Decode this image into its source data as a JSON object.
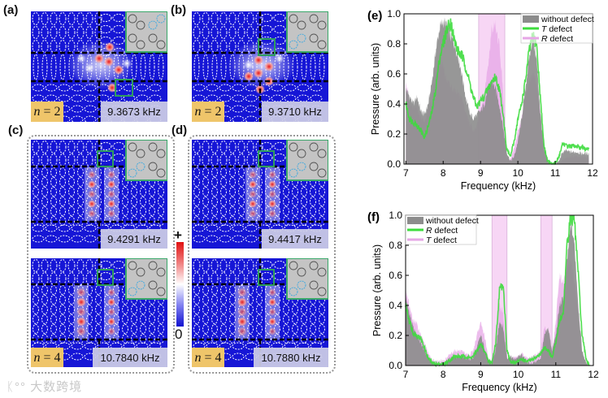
{
  "figure": {
    "panel_labels": {
      "a": "(a)",
      "b": "(b)",
      "c": "(c)",
      "d": "(d)",
      "e": "(e)",
      "f": "(f)"
    },
    "subpanels": [
      {
        "id": "a",
        "n_var": "n",
        "n_value": " = 2",
        "freq": "9.3673 kHz",
        "highlight": "top-right"
      },
      {
        "id": "b",
        "n_var": "n",
        "n_value": " = 2",
        "freq": "9.3710 kHz",
        "highlight": "bottom-left"
      },
      {
        "id": "c-top",
        "freq": "9.4291 kHz",
        "highlight": "bottom-left"
      },
      {
        "id": "c-bottom",
        "n_var": "n",
        "n_value": " = 4",
        "freq": "10.7840 kHz",
        "highlight": "bottom-left"
      },
      {
        "id": "d-top",
        "freq": "9.4417 kHz",
        "highlight": "bottom-left"
      },
      {
        "id": "d-bottom",
        "n_var": "n",
        "n_value": " = 4",
        "freq": "10.7880 kHz",
        "highlight": "bottom-left"
      }
    ],
    "colorbar": {
      "max_label": "+",
      "min_label": "0"
    },
    "watermark": "大数跨境"
  },
  "chart_data": [
    {
      "id": "e",
      "type": "area",
      "title": "(e)",
      "xlabel": "Frequency (kHz)",
      "ylabel": "Pressure (arb. units)",
      "xlim": [
        6.95,
        12.0
      ],
      "ylim": [
        0,
        1.0
      ],
      "xticks": [
        7,
        8,
        9,
        10,
        11,
        12
      ],
      "yticks": [
        "0.0",
        "0.2",
        "0.4",
        "0.6",
        "0.8",
        "1.0"
      ],
      "legend_position": "top-right",
      "bands": [
        [
          8.95,
          9.65
        ]
      ],
      "x": [
        7.0,
        7.1,
        7.2,
        7.3,
        7.4,
        7.5,
        7.6,
        7.7,
        7.8,
        7.9,
        8.0,
        8.1,
        8.2,
        8.3,
        8.4,
        8.5,
        8.6,
        8.7,
        8.8,
        8.9,
        9.0,
        9.1,
        9.2,
        9.3,
        9.4,
        9.5,
        9.6,
        9.7,
        9.8,
        9.9,
        10.0,
        10.1,
        10.2,
        10.3,
        10.4,
        10.5,
        10.6,
        10.7,
        10.8,
        10.9,
        11.0,
        11.1,
        11.2,
        11.3,
        11.4,
        11.5,
        11.6,
        11.7,
        11.8,
        11.9
      ],
      "series": [
        {
          "name": "without defect",
          "italic": "",
          "rest": "without defect",
          "style": "fill",
          "color": "#8c8c8c",
          "values": [
            0.5,
            0.45,
            0.4,
            0.45,
            0.35,
            0.33,
            0.4,
            0.55,
            0.75,
            0.9,
            0.95,
            0.92,
            0.85,
            0.8,
            0.72,
            0.6,
            0.45,
            0.35,
            0.3,
            0.33,
            0.35,
            0.4,
            0.5,
            0.55,
            0.5,
            0.4,
            0.25,
            0.08,
            0.02,
            0.05,
            0.15,
            0.3,
            0.5,
            0.7,
            0.85,
            0.7,
            0.35,
            0.1,
            0.02,
            0.0,
            0.0,
            0.02,
            0.08,
            0.09,
            0.08,
            0.08,
            0.08,
            0.07,
            0.07,
            0.07
          ]
        },
        {
          "name": "T defect",
          "italic": "T",
          "rest": " defect",
          "style": "line",
          "color": "#3ddc3d",
          "values": [
            0.4,
            0.3,
            0.28,
            0.26,
            0.22,
            0.18,
            0.25,
            0.35,
            0.5,
            0.7,
            0.8,
            0.9,
            0.95,
            0.82,
            0.75,
            0.72,
            0.65,
            0.55,
            0.45,
            0.38,
            0.42,
            0.45,
            0.5,
            0.55,
            0.58,
            0.5,
            0.35,
            0.1,
            0.05,
            0.15,
            0.3,
            0.4,
            0.55,
            0.75,
            0.85,
            0.8,
            0.45,
            0.12,
            0.02,
            0.0,
            0.0,
            0.05,
            0.14,
            0.12,
            0.12,
            0.12,
            0.11,
            0.11,
            0.1,
            0.11
          ]
        },
        {
          "name": "R defect",
          "italic": "R",
          "rest": " defect",
          "style": "pinkline",
          "color": "#e6a6e6",
          "values": [
            0.55,
            0.4,
            0.38,
            0.38,
            0.3,
            0.28,
            0.35,
            0.45,
            0.6,
            0.7,
            0.65,
            0.55,
            0.52,
            0.5,
            0.48,
            0.42,
            0.35,
            0.28,
            0.22,
            0.25,
            0.35,
            0.45,
            0.65,
            0.9,
            0.92,
            0.8,
            0.5,
            0.05,
            0.03,
            0.1,
            0.22,
            0.3,
            0.45,
            0.55,
            0.6,
            0.55,
            0.3,
            0.08,
            0.01,
            0.0,
            0.0,
            0.01,
            0.03,
            0.04,
            0.05,
            0.05,
            0.05,
            0.05,
            0.05,
            0.05
          ]
        }
      ]
    },
    {
      "id": "f",
      "type": "area",
      "title": "(f)",
      "xlabel": "Frequency (kHz)",
      "ylabel": "Pressure (arb. units)",
      "xlim": [
        7.0,
        12.0
      ],
      "ylim": [
        0,
        1.0
      ],
      "xticks": [
        7,
        8,
        9,
        10,
        11,
        12
      ],
      "yticks": [
        "0.0",
        "0.2",
        "0.4",
        "0.6",
        "0.8",
        "1.0"
      ],
      "legend_position": "top-left",
      "bands": [
        [
          9.3,
          9.7
        ],
        [
          10.6,
          10.9
        ]
      ],
      "x": [
        7.0,
        7.1,
        7.2,
        7.3,
        7.4,
        7.5,
        7.6,
        7.7,
        7.8,
        7.9,
        8.0,
        8.1,
        8.2,
        8.3,
        8.4,
        8.5,
        8.6,
        8.7,
        8.8,
        8.9,
        9.0,
        9.1,
        9.2,
        9.3,
        9.4,
        9.5,
        9.6,
        9.7,
        9.8,
        9.9,
        10.0,
        10.1,
        10.2,
        10.3,
        10.4,
        10.5,
        10.6,
        10.7,
        10.8,
        10.9,
        11.0,
        11.1,
        11.2,
        11.3,
        11.4,
        11.5,
        11.6,
        11.7,
        11.8,
        11.9
      ],
      "series": [
        {
          "name": "without defect",
          "italic": "",
          "rest": "without defect",
          "style": "fill",
          "color": "#8c8c8c",
          "values": [
            0.45,
            0.35,
            0.25,
            0.2,
            0.15,
            0.1,
            0.05,
            0.02,
            0.01,
            0.0,
            0.01,
            0.03,
            0.05,
            0.06,
            0.06,
            0.06,
            0.05,
            0.04,
            0.05,
            0.12,
            0.2,
            0.12,
            0.03,
            0.02,
            0.1,
            0.3,
            0.25,
            0.05,
            0.06,
            0.04,
            0.06,
            0.07,
            0.03,
            0.01,
            0.02,
            0.03,
            0.05,
            0.2,
            0.25,
            0.1,
            0.2,
            0.4,
            0.45,
            0.7,
            0.95,
            0.8,
            0.4,
            0.1,
            0.02,
            0.0
          ]
        },
        {
          "name": "R defect",
          "italic": "R",
          "rest": " defect",
          "style": "line",
          "color": "#3ddc3d",
          "values": [
            0.4,
            0.3,
            0.22,
            0.2,
            0.18,
            0.12,
            0.05,
            0.02,
            0.01,
            0.01,
            0.01,
            0.02,
            0.04,
            0.06,
            0.06,
            0.06,
            0.06,
            0.05,
            0.06,
            0.1,
            0.14,
            0.1,
            0.03,
            0.02,
            0.15,
            0.5,
            0.55,
            0.1,
            0.02,
            0.02,
            0.03,
            0.04,
            0.03,
            0.03,
            0.04,
            0.06,
            0.08,
            0.12,
            0.1,
            0.05,
            0.15,
            0.3,
            0.35,
            0.8,
            1.0,
            0.95,
            0.6,
            0.2,
            0.05,
            0.0
          ]
        },
        {
          "name": "T defect",
          "italic": "T",
          "rest": " defect",
          "style": "pinkline",
          "color": "#e6a6e6",
          "values": [
            0.5,
            0.4,
            0.3,
            0.28,
            0.2,
            0.15,
            0.08,
            0.04,
            0.03,
            0.03,
            0.03,
            0.05,
            0.08,
            0.1,
            0.1,
            0.09,
            0.08,
            0.07,
            0.1,
            0.2,
            0.28,
            0.2,
            0.05,
            0.03,
            0.15,
            0.4,
            0.35,
            0.05,
            0.05,
            0.05,
            0.06,
            0.08,
            0.06,
            0.05,
            0.06,
            0.08,
            0.1,
            0.25,
            0.2,
            0.08,
            0.3,
            0.6,
            0.55,
            0.65,
            0.7,
            0.55,
            0.3,
            0.08,
            0.02,
            0.0
          ]
        }
      ]
    }
  ]
}
